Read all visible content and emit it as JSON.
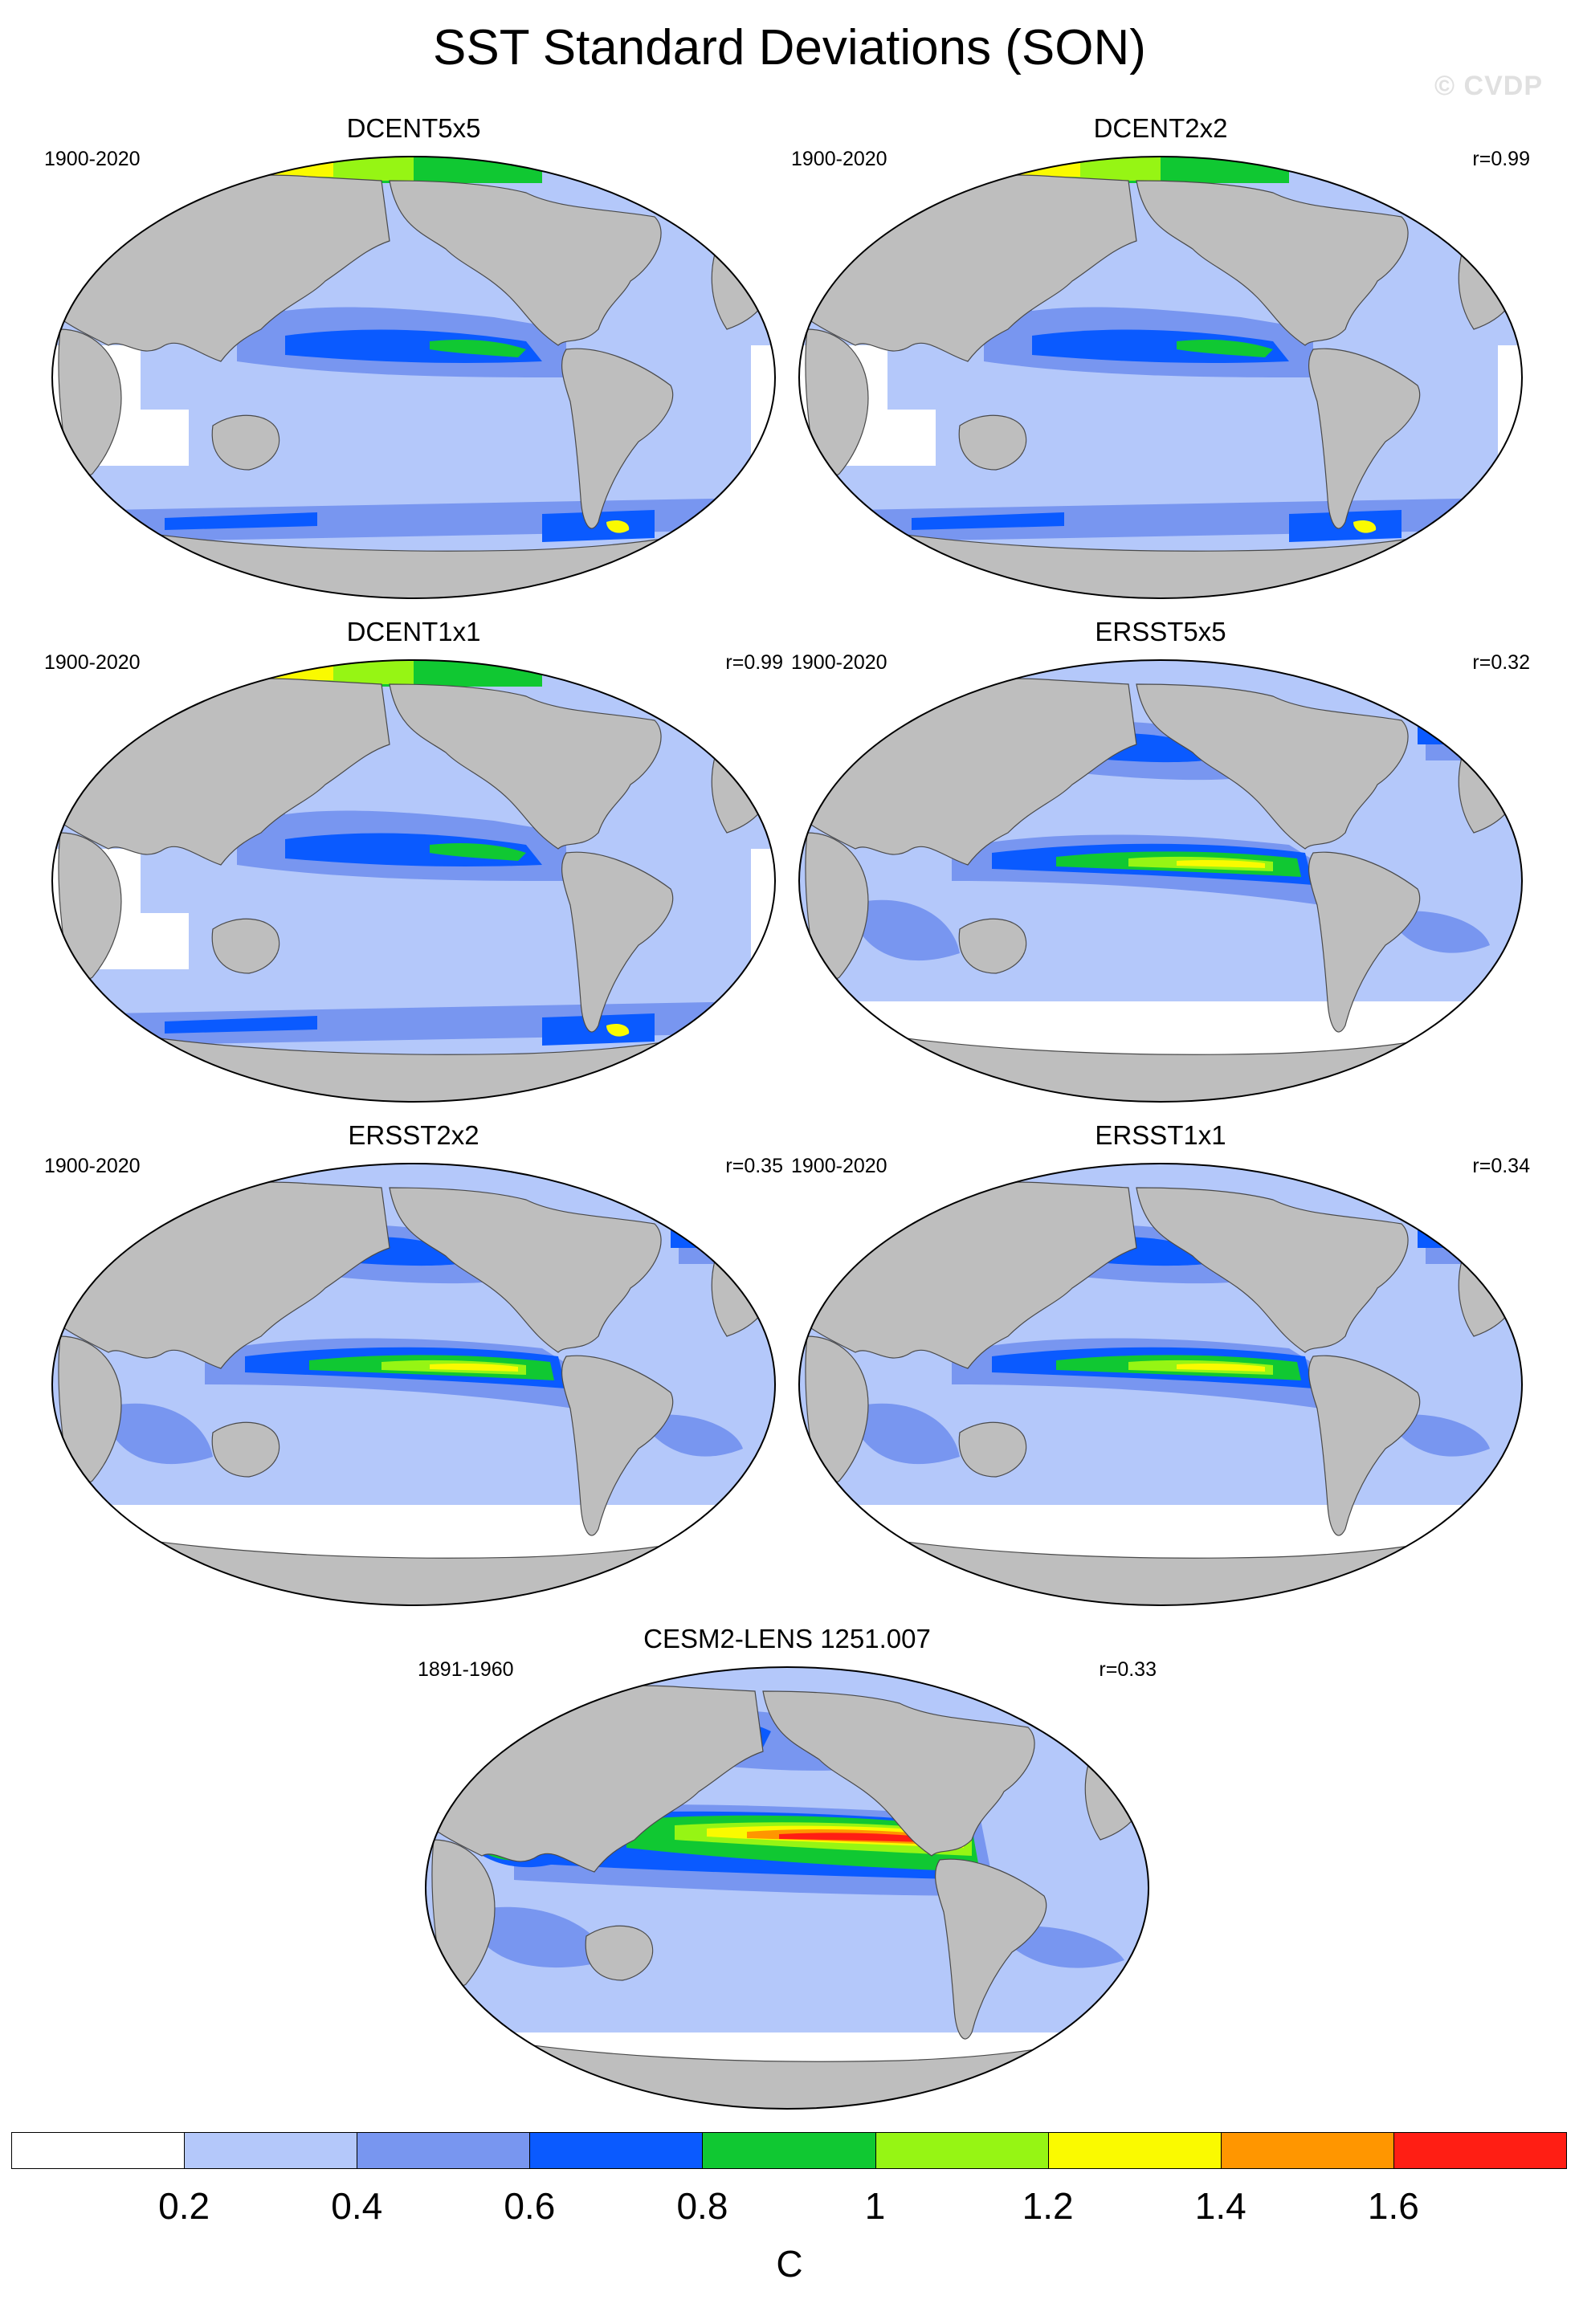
{
  "figure": {
    "title": "SST Standard Deviations (SON)",
    "watermark": "© CVDP"
  },
  "panels": [
    {
      "id": "dcent5x5",
      "title": "DCENT5x5",
      "years": "1900-2020",
      "corr": ""
    },
    {
      "id": "dcent2x2",
      "title": "DCENT2x2",
      "years": "1900-2020",
      "corr": "r=0.99"
    },
    {
      "id": "dcent1x1",
      "title": "DCENT1x1",
      "years": "1900-2020",
      "corr": "r=0.99"
    },
    {
      "id": "ersst5x5",
      "title": "ERSST5x5",
      "years": "1900-2020",
      "corr": "r=0.32"
    },
    {
      "id": "ersst2x2",
      "title": "ERSST2x2",
      "years": "1900-2020",
      "corr": "r=0.35"
    },
    {
      "id": "ersst1x1",
      "title": "ERSST1x1",
      "years": "1900-2020",
      "corr": "r=0.34"
    },
    {
      "id": "cesm2",
      "title": "CESM2-LENS 1251.007",
      "years": "1891-1960",
      "corr": "r=0.33"
    }
  ],
  "colorbar": {
    "unit": "C",
    "levels": [
      "0.2",
      "0.4",
      "0.6",
      "0.8",
      "1",
      "1.2",
      "1.4",
      "1.6"
    ],
    "colors": [
      "#ffffff",
      "#b4c8fa",
      "#7896f0",
      "#0a5aff",
      "#10c832",
      "#96f514",
      "#fafa00",
      "#ff9600",
      "#ff1e14"
    ]
  },
  "palette": {
    "land": "#bebebe",
    "land_edge": "#4a4a4a"
  }
}
